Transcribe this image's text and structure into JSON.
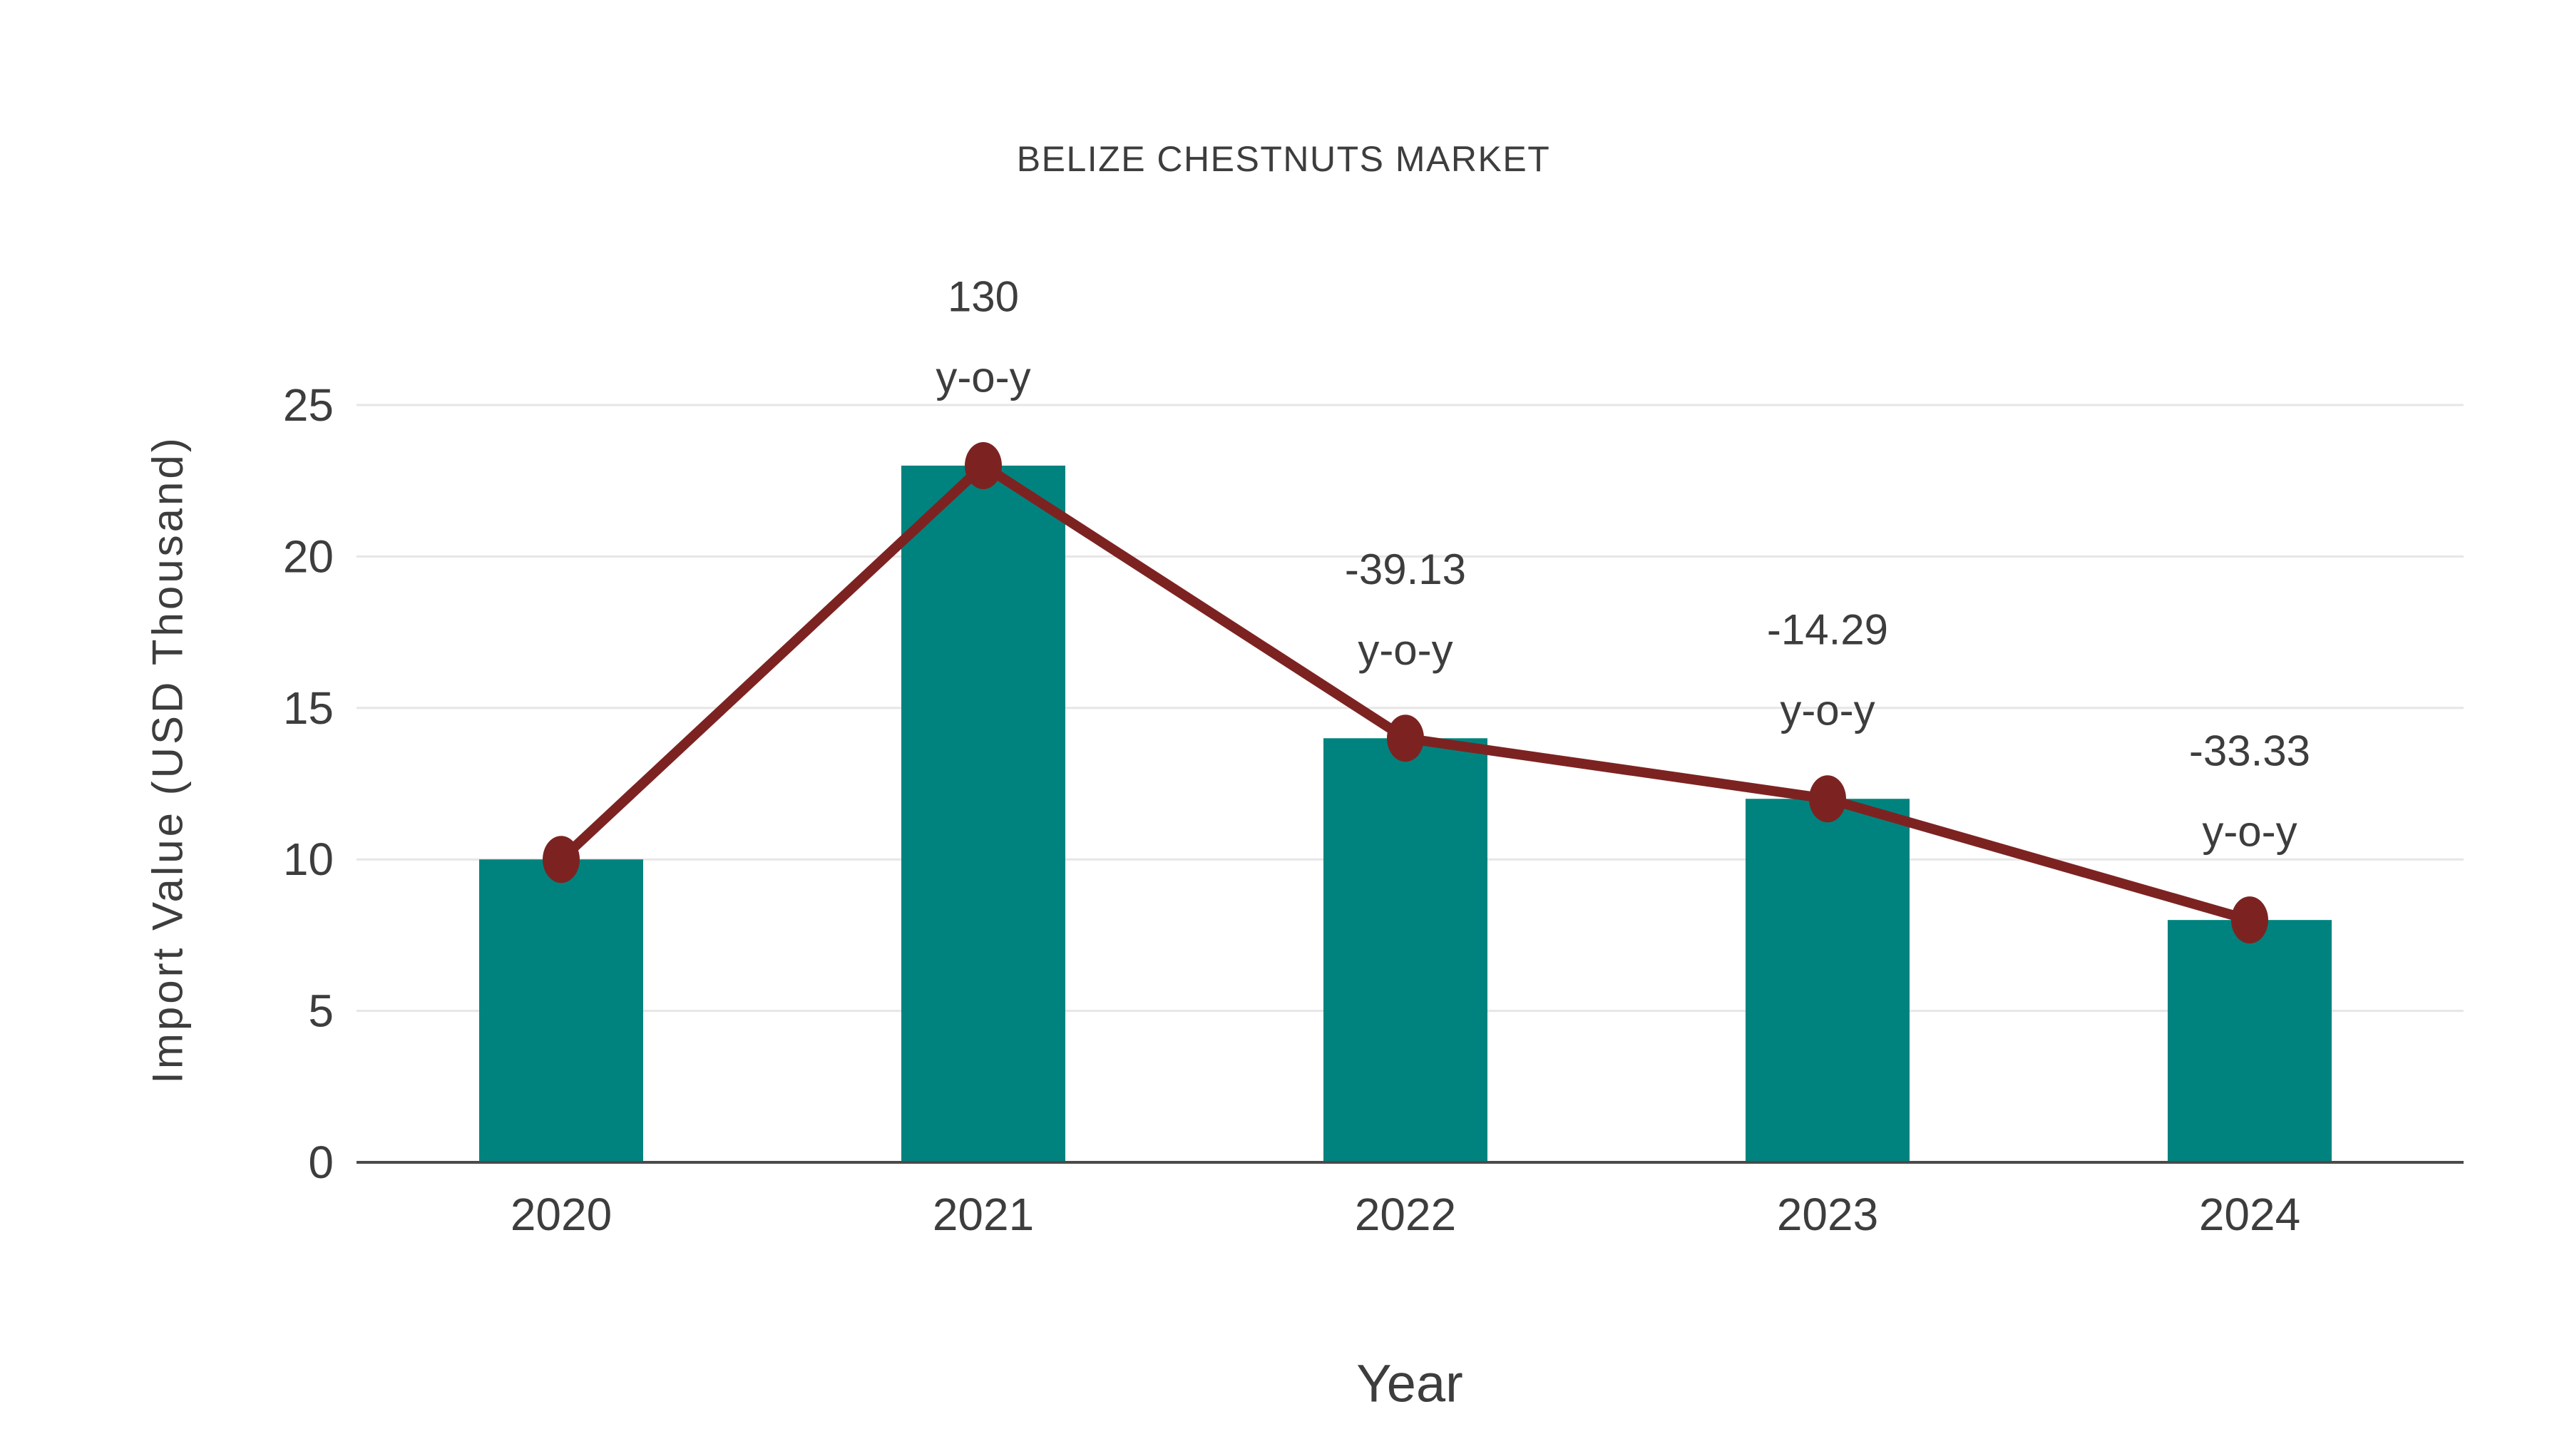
{
  "chart_data": {
    "type": "bar",
    "title": "BELIZE CHESTNUTS MARKET",
    "xlabel": "Year",
    "ylabel": "Import Value (USD Thousand)",
    "categories": [
      "2020",
      "2021",
      "2022",
      "2023",
      "2024"
    ],
    "series": [
      {
        "name": "import-value-bars",
        "type": "bar",
        "values": [
          10,
          23,
          14,
          12,
          8
        ],
        "color": "#00837E"
      },
      {
        "name": "import-value-trend-line",
        "type": "line",
        "values": [
          10,
          23,
          14,
          12,
          8
        ],
        "color": "#7C2322"
      }
    ],
    "annotations": [
      {
        "category": "2021",
        "lines": [
          "130",
          "y-o-y"
        ]
      },
      {
        "category": "2022",
        "lines": [
          "-39.13",
          "y-o-y"
        ]
      },
      {
        "category": "2023",
        "lines": [
          "-14.29",
          "y-o-y"
        ]
      },
      {
        "category": "2024",
        "lines": [
          "-33.33",
          "y-o-y"
        ]
      }
    ],
    "yticks": [
      0,
      5,
      10,
      15,
      20,
      25
    ],
    "ylim": [
      0,
      26.6
    ],
    "grid": true,
    "legend": "none",
    "colors": {
      "text": "#3D3D3D",
      "grid": "#E6E6E6",
      "axis": "#4A4A4A",
      "background": "#FFFFFF"
    }
  }
}
